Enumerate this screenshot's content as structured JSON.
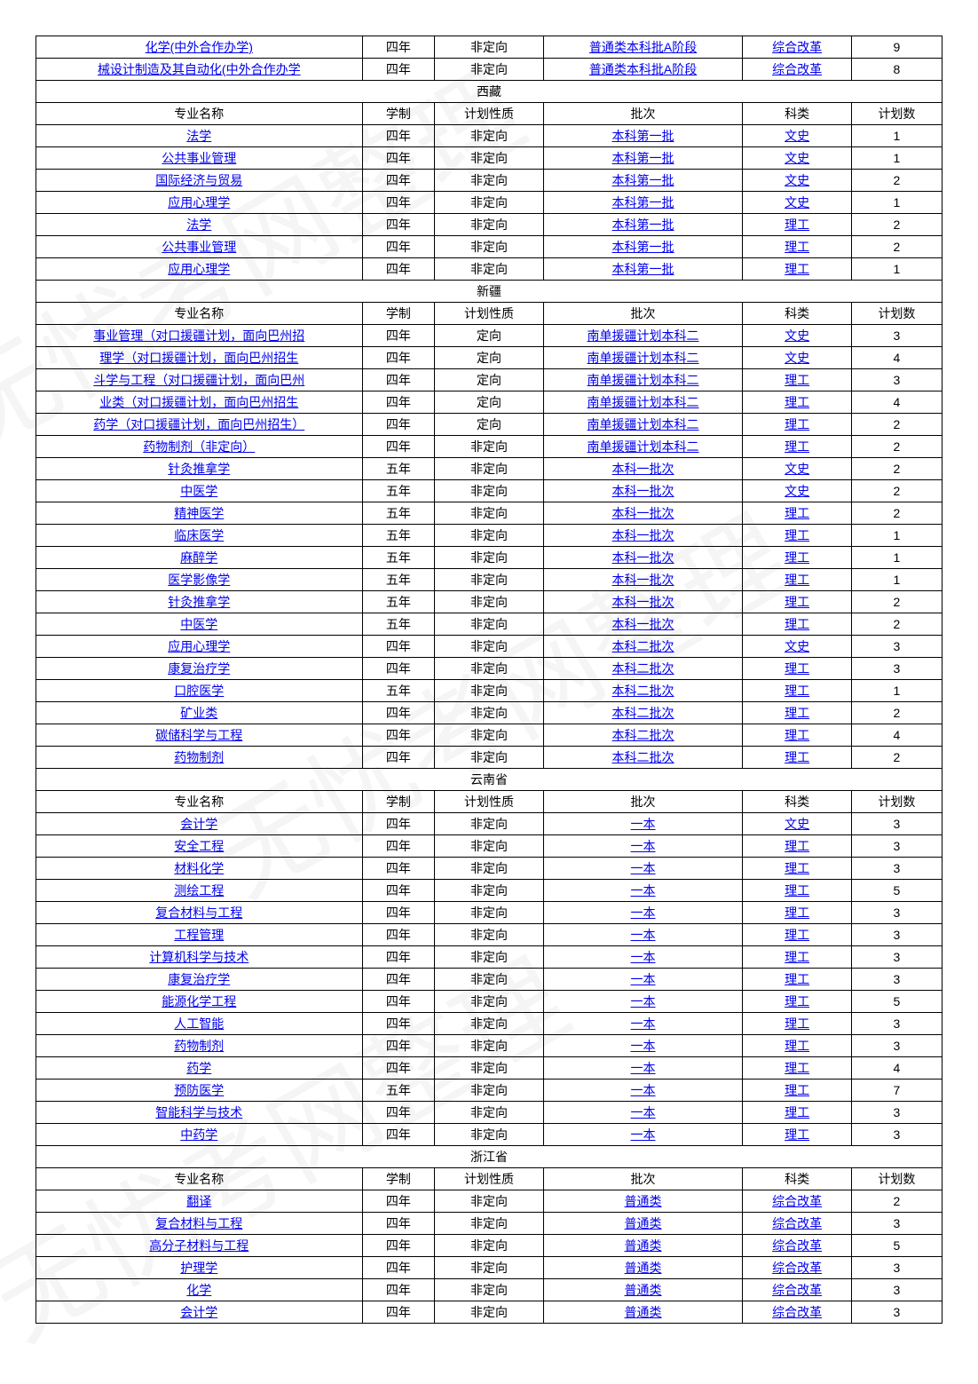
{
  "watermark_text": "无忧考网整理",
  "top_rows": [
    {
      "name": "化学(中外合作办学)",
      "dur": "四年",
      "nature": "非定向",
      "batch": "普通类本科批A阶段",
      "cat": "综合改革",
      "count": "9"
    },
    {
      "name": "械设计制造及其自动化(中外合作办学",
      "dur": "四年",
      "nature": "非定向",
      "batch": "普通类本科批A阶段",
      "cat": "综合改革",
      "count": "8"
    }
  ],
  "sections": [
    {
      "region": "西藏",
      "headers": {
        "name": "专业名称",
        "dur": "学制",
        "nature": "计划性质",
        "batch": "批次",
        "cat": "科类",
        "count": "计划数"
      },
      "rows": [
        {
          "name": "法学",
          "dur": "四年",
          "nature": "非定向",
          "batch": "本科第一批",
          "cat": "文史",
          "count": "1"
        },
        {
          "name": "公共事业管理",
          "dur": "四年",
          "nature": "非定向",
          "batch": "本科第一批",
          "cat": "文史",
          "count": "1"
        },
        {
          "name": "国际经济与贸易",
          "dur": "四年",
          "nature": "非定向",
          "batch": "本科第一批",
          "cat": "文史",
          "count": "2"
        },
        {
          "name": "应用心理学",
          "dur": "四年",
          "nature": "非定向",
          "batch": "本科第一批",
          "cat": "文史",
          "count": "1"
        },
        {
          "name": "法学",
          "dur": "四年",
          "nature": "非定向",
          "batch": "本科第一批",
          "cat": "理工",
          "count": "2"
        },
        {
          "name": "公共事业管理",
          "dur": "四年",
          "nature": "非定向",
          "batch": "本科第一批",
          "cat": "理工",
          "count": "2"
        },
        {
          "name": "应用心理学",
          "dur": "四年",
          "nature": "非定向",
          "batch": "本科第一批",
          "cat": "理工",
          "count": "1"
        }
      ]
    },
    {
      "region": "新疆",
      "headers": {
        "name": "专业名称",
        "dur": "学制",
        "nature": "计划性质",
        "batch": "批次",
        "cat": "科类",
        "count": "计划数"
      },
      "rows": [
        {
          "name": "事业管理（对口援疆计划，面向巴州招",
          "dur": "四年",
          "nature": "定向",
          "batch": "南单援疆计划本科二",
          "cat": "文史",
          "count": "3"
        },
        {
          "name": "理学（对口援疆计划，面向巴州招生",
          "dur": "四年",
          "nature": "定向",
          "batch": "南单援疆计划本科二",
          "cat": "文史",
          "count": "4"
        },
        {
          "name": "斗学与工程（对口援疆计划，面向巴州",
          "dur": "四年",
          "nature": "定向",
          "batch": "南单援疆计划本科二",
          "cat": "理工",
          "count": "3"
        },
        {
          "name": "业类（对口援疆计划，面向巴州招生",
          "dur": "四年",
          "nature": "定向",
          "batch": "南单援疆计划本科二",
          "cat": "理工",
          "count": "4"
        },
        {
          "name": "药学（对口援疆计划，面向巴州招生）",
          "dur": "四年",
          "nature": "定向",
          "batch": "南单援疆计划本科二",
          "cat": "理工",
          "count": "2"
        },
        {
          "name": "药物制剂（非定向）",
          "dur": "四年",
          "nature": "非定向",
          "batch": "南单援疆计划本科二",
          "cat": "理工",
          "count": "2"
        },
        {
          "name": "针灸推拿学",
          "dur": "五年",
          "nature": "非定向",
          "batch": "本科一批次",
          "cat": "文史",
          "count": "2"
        },
        {
          "name": "中医学",
          "dur": "五年",
          "nature": "非定向",
          "batch": "本科一批次",
          "cat": "文史",
          "count": "2"
        },
        {
          "name": "精神医学",
          "dur": "五年",
          "nature": "非定向",
          "batch": "本科一批次",
          "cat": "理工",
          "count": "2"
        },
        {
          "name": "临床医学",
          "dur": "五年",
          "nature": "非定向",
          "batch": "本科一批次",
          "cat": "理工",
          "count": "1"
        },
        {
          "name": "麻醉学",
          "dur": "五年",
          "nature": "非定向",
          "batch": "本科一批次",
          "cat": "理工",
          "count": "1"
        },
        {
          "name": "医学影像学",
          "dur": "五年",
          "nature": "非定向",
          "batch": "本科一批次",
          "cat": "理工",
          "count": "1"
        },
        {
          "name": "针灸推拿学",
          "dur": "五年",
          "nature": "非定向",
          "batch": "本科一批次",
          "cat": "理工",
          "count": "2"
        },
        {
          "name": "中医学",
          "dur": "五年",
          "nature": "非定向",
          "batch": "本科一批次",
          "cat": "理工",
          "count": "2"
        },
        {
          "name": "应用心理学",
          "dur": "四年",
          "nature": "非定向",
          "batch": "本科二批次",
          "cat": "文史",
          "count": "3"
        },
        {
          "name": "康复治疗学",
          "dur": "四年",
          "nature": "非定向",
          "batch": "本科二批次",
          "cat": "理工",
          "count": "3"
        },
        {
          "name": "口腔医学",
          "dur": "五年",
          "nature": "非定向",
          "batch": "本科二批次",
          "cat": "理工",
          "count": "1"
        },
        {
          "name": "矿业类",
          "dur": "四年",
          "nature": "非定向",
          "batch": "本科二批次",
          "cat": "理工",
          "count": "2"
        },
        {
          "name": "碳储科学与工程",
          "dur": "四年",
          "nature": "非定向",
          "batch": "本科二批次",
          "cat": "理工",
          "count": "4"
        },
        {
          "name": "药物制剂",
          "dur": "四年",
          "nature": "非定向",
          "batch": "本科二批次",
          "cat": "理工",
          "count": "2"
        }
      ]
    },
    {
      "region": "云南省",
      "headers": {
        "name": "专业名称",
        "dur": "学制",
        "nature": "计划性质",
        "batch": "批次",
        "cat": "科类",
        "count": "计划数"
      },
      "rows": [
        {
          "name": "会计学",
          "dur": "四年",
          "nature": "非定向",
          "batch": "一本",
          "cat": "文史",
          "count": "3"
        },
        {
          "name": "安全工程",
          "dur": "四年",
          "nature": "非定向",
          "batch": "一本",
          "cat": "理工",
          "count": "3"
        },
        {
          "name": "材料化学",
          "dur": "四年",
          "nature": "非定向",
          "batch": "一本",
          "cat": "理工",
          "count": "3"
        },
        {
          "name": "测绘工程",
          "dur": "四年",
          "nature": "非定向",
          "batch": "一本",
          "cat": "理工",
          "count": "5"
        },
        {
          "name": "复合材料与工程",
          "dur": "四年",
          "nature": "非定向",
          "batch": "一本",
          "cat": "理工",
          "count": "3"
        },
        {
          "name": "工程管理",
          "dur": "四年",
          "nature": "非定向",
          "batch": "一本",
          "cat": "理工",
          "count": "3"
        },
        {
          "name": "计算机科学与技术",
          "dur": "四年",
          "nature": "非定向",
          "batch": "一本",
          "cat": "理工",
          "count": "3"
        },
        {
          "name": "康复治疗学",
          "dur": "四年",
          "nature": "非定向",
          "batch": "一本",
          "cat": "理工",
          "count": "3"
        },
        {
          "name": "能源化学工程",
          "dur": "四年",
          "nature": "非定向",
          "batch": "一本",
          "cat": "理工",
          "count": "5"
        },
        {
          "name": "人工智能",
          "dur": "四年",
          "nature": "非定向",
          "batch": "一本",
          "cat": "理工",
          "count": "3"
        },
        {
          "name": "药物制剂",
          "dur": "四年",
          "nature": "非定向",
          "batch": "一本",
          "cat": "理工",
          "count": "3"
        },
        {
          "name": "药学",
          "dur": "四年",
          "nature": "非定向",
          "batch": "一本",
          "cat": "理工",
          "count": "4"
        },
        {
          "name": "预防医学",
          "dur": "五年",
          "nature": "非定向",
          "batch": "一本",
          "cat": "理工",
          "count": "7"
        },
        {
          "name": "智能科学与技术",
          "dur": "四年",
          "nature": "非定向",
          "batch": "一本",
          "cat": "理工",
          "count": "3"
        },
        {
          "name": "中药学",
          "dur": "四年",
          "nature": "非定向",
          "batch": "一本",
          "cat": "理工",
          "count": "3"
        }
      ]
    },
    {
      "region": "浙江省",
      "headers": {
        "name": "专业名称",
        "dur": "学制",
        "nature": "计划性质",
        "batch": "批次",
        "cat": "科类",
        "count": "计划数"
      },
      "rows": [
        {
          "name": "翻译",
          "dur": "四年",
          "nature": "非定向",
          "batch": "普通类",
          "cat": "综合改革",
          "count": "2"
        },
        {
          "name": "复合材料与工程",
          "dur": "四年",
          "nature": "非定向",
          "batch": "普通类",
          "cat": "综合改革",
          "count": "3"
        },
        {
          "name": "高分子材料与工程",
          "dur": "四年",
          "nature": "非定向",
          "batch": "普通类",
          "cat": "综合改革",
          "count": "5"
        },
        {
          "name": "护理学",
          "dur": "四年",
          "nature": "非定向",
          "batch": "普通类",
          "cat": "综合改革",
          "count": "3"
        },
        {
          "name": "化学",
          "dur": "四年",
          "nature": "非定向",
          "batch": "普通类",
          "cat": "综合改革",
          "count": "3"
        },
        {
          "name": "会计学",
          "dur": "四年",
          "nature": "非定向",
          "batch": "普通类",
          "cat": "综合改革",
          "count": "3"
        }
      ]
    }
  ]
}
